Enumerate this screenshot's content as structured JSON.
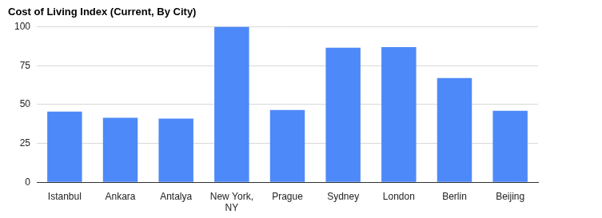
{
  "chart_data": {
    "type": "bar",
    "title": "Cost of Living Index (Current, By City)",
    "categories": [
      "Istanbul",
      "Ankara",
      "Antalya",
      "New York, NY",
      "Prague",
      "Sydney",
      "London",
      "Berlin",
      "Beijing"
    ],
    "values": [
      45.5,
      41.5,
      41,
      100,
      46.5,
      86.5,
      87,
      67,
      46
    ],
    "color": "#4d89f9",
    "ylim": [
      0,
      100
    ],
    "yticks": [
      0,
      25,
      50,
      75,
      100
    ],
    "grid": true
  }
}
